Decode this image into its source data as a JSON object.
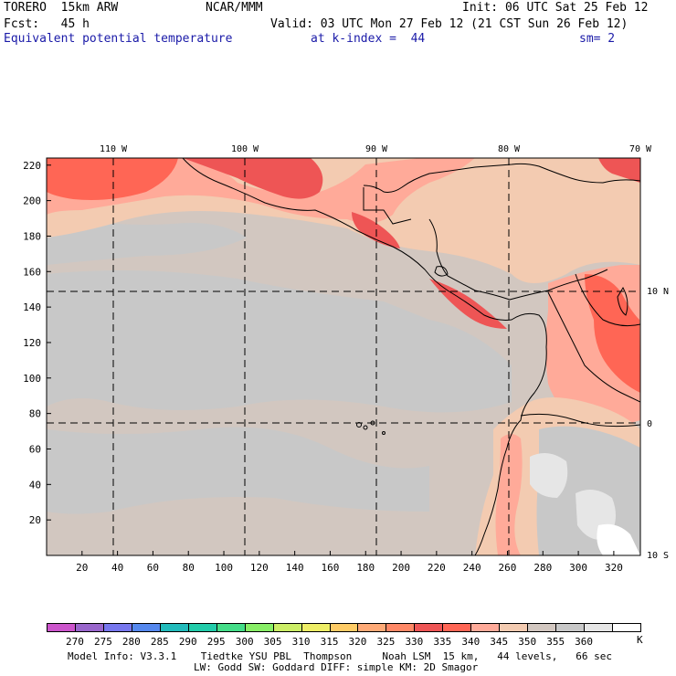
{
  "header": {
    "model": "TORERO  15km ARW",
    "center": "NCAR/MMM",
    "init": "Init: 06 UTC Sat 25 Feb 12",
    "fcst": "Fcst:   45 h",
    "valid": "Valid: 03 UTC Mon 27 Feb 12 (21 CST Sun 26 Feb 12)",
    "field": "Equivalent potential temperature",
    "level": "at k-index =  44",
    "smooth": "sm= 2"
  },
  "map": {
    "lon_labels": [
      "110 W",
      "100 W",
      "90 W",
      "80 W",
      "70 W"
    ],
    "lat_labels": [
      "10 N",
      "0",
      "10 S"
    ],
    "y_ticks": [
      "220",
      "200",
      "180",
      "160",
      "140",
      "120",
      "100",
      "80",
      "60",
      "40",
      "20"
    ],
    "x_ticks": [
      "20",
      "40",
      "60",
      "80",
      "100",
      "120",
      "140",
      "160",
      "180",
      "200",
      "220",
      "240",
      "260",
      "280",
      "300",
      "320"
    ]
  },
  "colorbar": {
    "labels": [
      "270",
      "275",
      "280",
      "285",
      "290",
      "295",
      "300",
      "305",
      "310",
      "315",
      "320",
      "325",
      "330",
      "335",
      "340",
      "345",
      "350",
      "355",
      "360"
    ],
    "unit": "K",
    "colors": [
      "#cc55cc",
      "#9966cc",
      "#7777ee",
      "#5588ee",
      "#22bbbb",
      "#22ccaa",
      "#44dd88",
      "#88ee66",
      "#ccee66",
      "#eeee66",
      "#ffcc66",
      "#ffaa77",
      "#ff8866",
      "#ee5555",
      "#ff6655",
      "#ffaa99",
      "#f3cbb1",
      "#d2c7c0",
      "#c8c8c8",
      "#e6e6e6",
      "#ffffff"
    ]
  },
  "footer": {
    "line1": "Model Info: V3.3.1    Tiedtke YSU PBL  Thompson     Noah LSM  15 km,   44 levels,   66 sec",
    "line2": "LW: Godd SW: Goddard DIFF: simple KM: 2D Smagor"
  }
}
